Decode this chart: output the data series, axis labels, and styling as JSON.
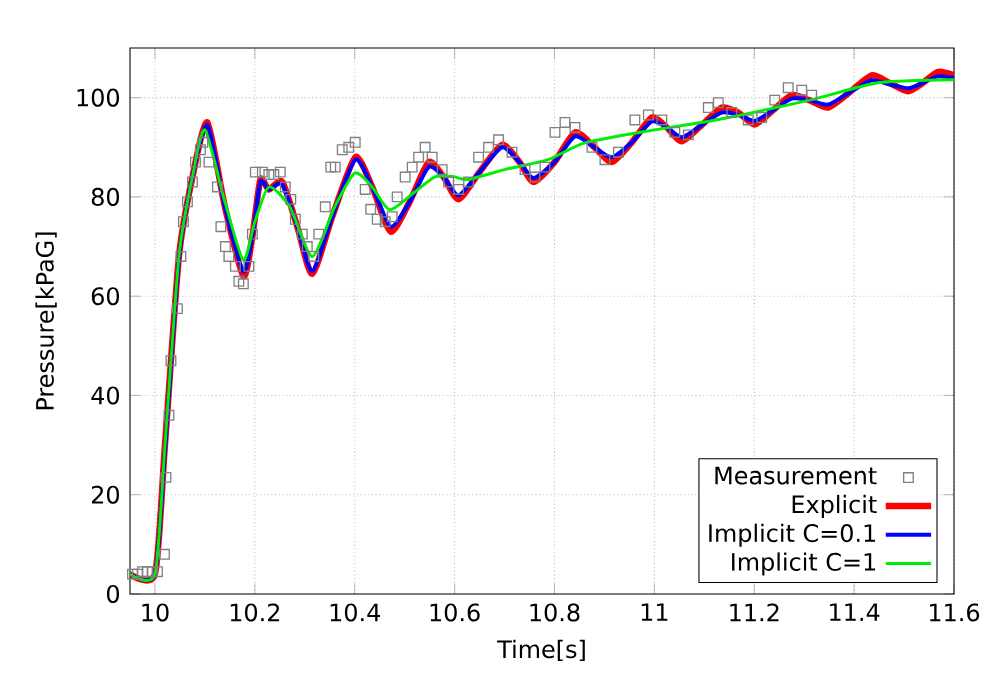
{
  "chart_data": {
    "type": "line",
    "xlabel": "Time[s]",
    "ylabel": "Pressure[kPaG]",
    "xlim": [
      9.95,
      11.6
    ],
    "ylim": [
      0,
      110
    ],
    "xticks": [
      10,
      10.2,
      10.4,
      10.6,
      10.8,
      11,
      11.2,
      11.4,
      11.6
    ],
    "yticks": [
      0,
      20,
      40,
      60,
      80,
      100
    ],
    "grid": true,
    "legend": "bottom right",
    "line_style": "solid",
    "series": [
      {
        "name": "Measurement",
        "type": "scatter",
        "marker": "square",
        "color": "#808080",
        "x": [
          9.955,
          9.965,
          9.975,
          9.985,
          9.995,
          10.005,
          10.019,
          10.022,
          10.028,
          10.032,
          10.045,
          10.052,
          10.057,
          10.065,
          10.075,
          10.081,
          10.091,
          10.096,
          10.108,
          10.125,
          10.132,
          10.141,
          10.148,
          10.161,
          10.168,
          10.177,
          10.188,
          10.195,
          10.201,
          10.215,
          10.228,
          10.238,
          10.251,
          10.261,
          10.272,
          10.281,
          10.295,
          10.305,
          10.318,
          10.328,
          10.341,
          10.352,
          10.361,
          10.375,
          10.388,
          10.401,
          10.421,
          10.432,
          10.445,
          10.461,
          10.475,
          10.485,
          10.501,
          10.515,
          10.528,
          10.541,
          10.555,
          10.575,
          10.588,
          10.608,
          10.628,
          10.648,
          10.668,
          10.688,
          10.715,
          10.741,
          10.761,
          10.781,
          10.801,
          10.821,
          10.841,
          10.875,
          10.901,
          10.928,
          10.961,
          10.988,
          11.015,
          11.041,
          11.068,
          11.108,
          11.128,
          11.155,
          11.188,
          11.215,
          11.241,
          11.268,
          11.295,
          11.315
        ],
        "values": [
          4,
          4,
          4.5,
          4.5,
          4.5,
          4.5,
          8,
          23.5,
          36,
          47,
          57.5,
          68,
          75,
          79,
          83,
          87,
          89.5,
          91,
          87,
          82,
          74,
          70,
          68,
          66,
          63,
          62.5,
          66,
          72.5,
          85,
          85,
          84.5,
          84.5,
          85,
          82,
          79.5,
          75.5,
          72.5,
          70,
          68,
          72.5,
          78,
          86,
          86,
          89.5,
          90,
          91,
          81.5,
          77.5,
          75.5,
          75,
          76,
          80,
          84,
          86,
          88,
          90,
          88,
          85.5,
          83,
          81.5,
          83,
          88,
          90,
          91.5,
          89,
          85.5,
          84,
          86,
          93,
          95,
          94,
          90,
          87.5,
          89,
          95.5,
          96.5,
          95.5,
          93,
          92.5,
          98,
          99,
          97,
          95.5,
          96,
          99.5,
          102,
          101.5,
          100.5
        ]
      },
      {
        "name": "Explicit",
        "marker": "none",
        "color": "#ff0000",
        "x": [
          9.95,
          10.0,
          10.02,
          10.048,
          10.075,
          10.105,
          10.14,
          10.177,
          10.195,
          10.211,
          10.228,
          10.255,
          10.285,
          10.315,
          10.355,
          10.401,
          10.435,
          10.472,
          10.51,
          10.548,
          10.578,
          10.608,
          10.65,
          10.695,
          10.73,
          10.758,
          10.8,
          10.841,
          10.88,
          10.915,
          10.955,
          10.995,
          11.025,
          11.055,
          11.095,
          11.135,
          11.168,
          11.201,
          11.238,
          11.275,
          11.31,
          11.348,
          11.39,
          11.435,
          11.47,
          11.508,
          11.538,
          11.568,
          11.6
        ],
        "values": [
          4,
          4,
          30,
          68,
          84,
          95,
          78,
          64,
          72,
          83.5,
          81.5,
          83,
          74,
          64.5,
          76,
          88,
          82,
          73,
          79,
          87,
          84,
          79.5,
          85,
          90.5,
          87,
          83,
          87,
          93,
          90,
          87,
          91,
          96,
          94,
          91.2,
          94.5,
          98,
          97,
          94.6,
          97.5,
          100.5,
          99.5,
          98,
          101,
          104.5,
          103,
          101.3,
          103,
          105.2,
          104.5
        ]
      },
      {
        "name": "Implicit C=0.1",
        "marker": "none",
        "color": "#0000ff",
        "x": [
          9.95,
          10.0,
          10.02,
          10.048,
          10.075,
          10.105,
          10.14,
          10.177,
          10.195,
          10.211,
          10.228,
          10.255,
          10.285,
          10.315,
          10.355,
          10.401,
          10.435,
          10.472,
          10.51,
          10.548,
          10.578,
          10.608,
          10.65,
          10.695,
          10.73,
          10.758,
          10.8,
          10.841,
          10.88,
          10.915,
          10.955,
          10.995,
          11.025,
          11.055,
          11.095,
          11.135,
          11.168,
          11.201,
          11.238,
          11.275,
          11.31,
          11.348,
          11.39,
          11.435,
          11.47,
          11.508,
          11.538,
          11.568,
          11.6
        ],
        "values": [
          4,
          4,
          29,
          67.5,
          84,
          94.5,
          78,
          65,
          72,
          83,
          81.5,
          82.5,
          74,
          65,
          76,
          87.5,
          82,
          74,
          79,
          86,
          84,
          80.3,
          85,
          90,
          87,
          83.8,
          87,
          92.2,
          90,
          88,
          91,
          95.2,
          94,
          92,
          94.5,
          97,
          96.5,
          95.3,
          97.5,
          99.8,
          99.5,
          98.6,
          101,
          103.5,
          102.7,
          101.9,
          103,
          104.3,
          104
        ]
      },
      {
        "name": "Implicit C=1",
        "marker": "none",
        "color": "#00ee00",
        "x": [
          9.95,
          10.0,
          10.02,
          10.048,
          10.075,
          10.1,
          10.14,
          10.177,
          10.2,
          10.228,
          10.27,
          10.315,
          10.36,
          10.4,
          10.435,
          10.47,
          10.52,
          10.56,
          10.597,
          10.627,
          10.7,
          10.787,
          10.861,
          11.0,
          11.128,
          11.315,
          11.448,
          11.6
        ],
        "values": [
          4,
          4,
          30,
          68,
          84,
          93.5,
          79,
          67.3,
          75,
          82,
          78,
          68,
          78,
          84.8,
          82,
          77.4,
          81,
          84,
          84.1,
          83.5,
          85.5,
          87.5,
          90.9,
          93.5,
          95.6,
          99.6,
          103,
          103.6
        ]
      }
    ]
  }
}
